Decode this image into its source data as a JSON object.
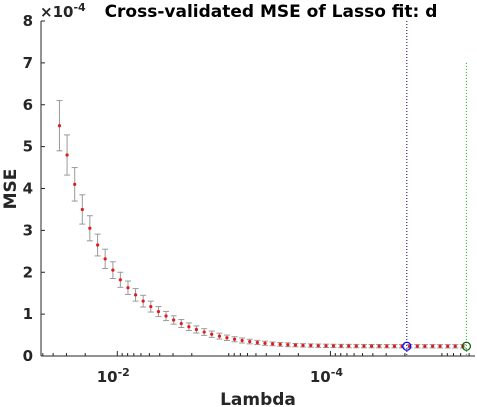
{
  "chart_data": {
    "type": "scatter",
    "title": "Cross-validated MSE of Lasso fit: d",
    "xlabel": "Lambda",
    "ylabel": "MSE",
    "x_scale": "log",
    "x_direction": "reverse",
    "xlim": [
      0.052,
      4.4e-06
    ],
    "ylim": [
      0,
      0.0008
    ],
    "y_exponent_label": "×10",
    "y_exponent": "-4",
    "y_tick_labels": [
      "0",
      "1",
      "2",
      "3",
      "4",
      "5",
      "6",
      "7",
      "8"
    ],
    "x_tick_labels": [
      {
        "value": 0.01,
        "label": "10",
        "sup": "-2"
      },
      {
        "value": 0.0001,
        "label": "10",
        "sup": "-4"
      }
    ],
    "grid": false,
    "series": [
      {
        "lambda": [
          0.0349,
          0.0296,
          0.0251,
          0.0213,
          0.0181,
          0.0153,
          0.013,
          0.011,
          0.00936,
          0.00794,
          0.00674,
          0.00572,
          0.00485,
          0.00411,
          0.00349,
          0.00296,
          0.00251,
          0.00213,
          0.00181,
          0.00153,
          0.0013,
          0.0011,
          0.000936,
          0.000794,
          0.000674,
          0.000572,
          0.000485,
          0.000411,
          0.000349,
          0.000296,
          0.000251,
          0.000213,
          0.000181,
          0.000153,
          0.00013,
          0.00011,
          9.36e-05,
          7.94e-05,
          6.74e-05,
          5.72e-05,
          4.85e-05,
          4.11e-05,
          3.49e-05,
          2.96e-05,
          2.51e-05,
          2.13e-05,
          1.81e-05,
          1.53e-05,
          1.3e-05,
          1.1e-05,
          9.36e-06,
          7.94e-06,
          6.74e-06,
          5.72e-06
        ],
        "mse": [
          0.00055,
          0.00048,
          0.00041,
          0.00035,
          0.000305,
          0.000265,
          0.000232,
          0.000205,
          0.000182,
          0.000163,
          0.000146,
          0.000131,
          0.000118,
          0.000106,
          9.55e-05,
          8.6e-05,
          7.75e-05,
          7e-05,
          6.33e-05,
          5.72e-05,
          5.2e-05,
          4.75e-05,
          4.35e-05,
          4e-05,
          3.7e-05,
          3.45e-05,
          3.23e-05,
          3.05e-05,
          2.9e-05,
          2.78e-05,
          2.68e-05,
          2.6e-05,
          2.54e-05,
          2.5e-05,
          2.46e-05,
          2.43e-05,
          2.41e-05,
          2.39e-05,
          2.38e-05,
          2.37e-05,
          2.36e-05,
          2.35e-05,
          2.35e-05,
          2.34e-05,
          2.34e-05,
          2.34e-05,
          2.33e-05,
          2.33e-05,
          2.33e-05,
          2.33e-05,
          2.32e-05,
          2.32e-05,
          2.32e-05,
          2.32e-05
        ],
        "se": [
          6e-05,
          4.8e-05,
          4e-05,
          3.5e-05,
          3e-05,
          2.6e-05,
          2.3e-05,
          2e-05,
          1.8e-05,
          1.6e-05,
          1.5e-05,
          1.4e-05,
          1.3e-05,
          1.2e-05,
          1.1e-05,
          1e-05,
          9.5e-06,
          9e-06,
          8.5e-06,
          8e-06,
          7.5e-06,
          7e-06,
          6.5e-06,
          6e-06,
          6e-06,
          5.5e-06,
          5e-06,
          5e-06,
          4.5e-06,
          4.5e-06,
          4.5e-06,
          4e-06,
          4e-06,
          4e-06,
          4e-06,
          4e-06,
          4e-06,
          4e-06,
          4e-06,
          4e-06,
          4e-06,
          4e-06,
          4e-06,
          4e-06,
          4e-06,
          4e-06,
          4e-06,
          4e-06,
          4e-06,
          4e-06,
          4e-06,
          4e-06,
          4e-06,
          4e-06
        ],
        "color": "#e31a1c",
        "errorbar_color": "#999999"
      }
    ],
    "vertical_lines": [
      {
        "lambda": 1.92e-05,
        "color": "#00007f",
        "style": "dotted"
      },
      {
        "lambda": 5.3e-06,
        "color": "#00b000",
        "style": "dotted"
      }
    ],
    "circles": [
      {
        "lambda": 1.92e-05,
        "mse": 2.33e-05,
        "color": "#0000ff"
      },
      {
        "lambda": 5.3e-06,
        "mse": 2.32e-05,
        "color": "#006400"
      }
    ]
  }
}
